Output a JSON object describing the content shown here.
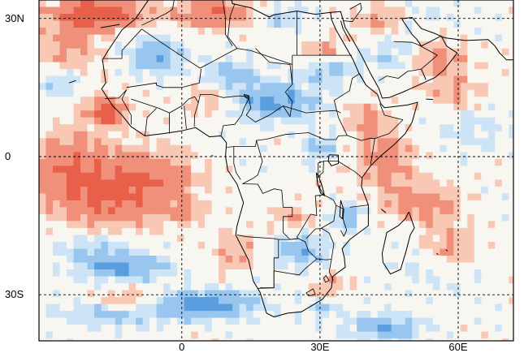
{
  "map": {
    "lat_labels": [
      {
        "text": "30N",
        "lat": 30
      },
      {
        "text": "0",
        "lat": 0
      },
      {
        "text": "30S",
        "lat": -30
      }
    ],
    "lon_labels": [
      {
        "text": "0",
        "lon": 0
      },
      {
        "text": "30E",
        "lon": 30
      },
      {
        "text": "60E",
        "lon": 60
      }
    ],
    "extent": {
      "lon_min": -31,
      "lon_max": 72,
      "lat_min": -40,
      "lat_max": 34
    },
    "gridlines": {
      "lats": [
        30,
        0,
        -30
      ],
      "lons": [
        0,
        30,
        60
      ],
      "style": "dashed"
    },
    "colors": {
      "strong_red": "#e8604a",
      "red": "#f0907a",
      "light_red": "#f8c8b4",
      "neutral": "#f8f6f0",
      "light_blue": "#cde4f6",
      "blue": "#98c6ee",
      "strong_blue": "#5a9ee0",
      "coast": "#000000",
      "grid": "#000000",
      "frame": "#000000"
    }
  }
}
